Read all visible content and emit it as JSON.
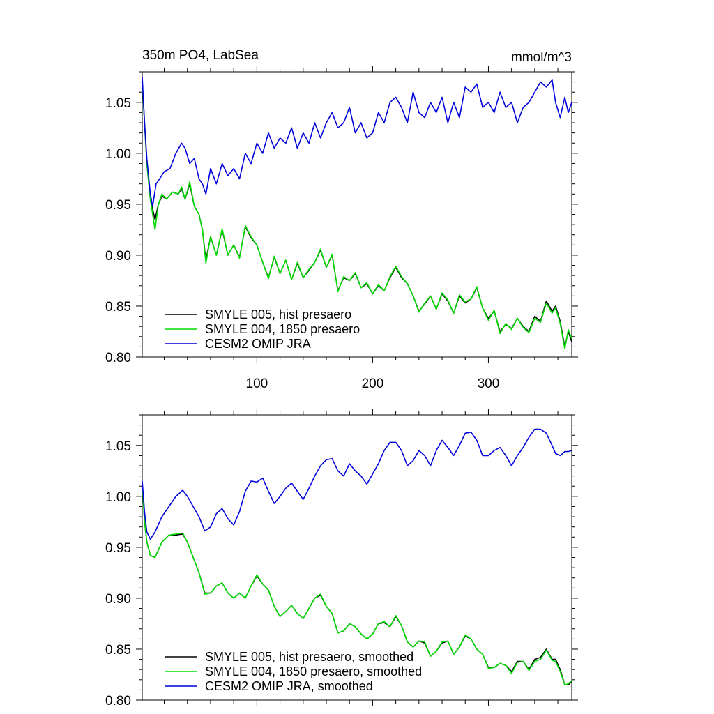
{
  "figure": {
    "title_left": "350m PO4, LabSea",
    "title_right": "mmol/m^3"
  },
  "colors": {
    "SMYLE 005": "#000000",
    "SMYLE 004": "#00dd00",
    "CESM2 OMIP JRA": "#0000dd"
  },
  "chart_data": [
    {
      "type": "line",
      "title": "350m PO4, LabSea",
      "units": "mmol/m^3",
      "xlim": [
        1,
        372
      ],
      "ylim": [
        0.8,
        1.08
      ],
      "yticks": [
        "0.80",
        "0.85",
        "0.90",
        "0.95",
        "1.00",
        "1.05"
      ],
      "xticks": [
        "100",
        "200",
        "300"
      ],
      "legend_position": "bottom-left",
      "grid": false,
      "series": [
        {
          "name": "SMYLE 005, hist presaero",
          "color": "#000000",
          "x": [
            1,
            3,
            5,
            8,
            12,
            15,
            18,
            22,
            27,
            32,
            35,
            38,
            42,
            46,
            50,
            53,
            56,
            60,
            65,
            70,
            75,
            80,
            85,
            90,
            95,
            100,
            105,
            110,
            115,
            120,
            125,
            130,
            135,
            140,
            145,
            150,
            155,
            160,
            165,
            170,
            175,
            180,
            185,
            190,
            195,
            200,
            205,
            210,
            215,
            220,
            225,
            230,
            235,
            240,
            245,
            250,
            255,
            260,
            265,
            270,
            275,
            280,
            285,
            290,
            295,
            300,
            305,
            310,
            315,
            320,
            325,
            330,
            335,
            340,
            345,
            350,
            355,
            358,
            362,
            366,
            369,
            372
          ],
          "y": [
            1.07,
            1.03,
            0.99,
            0.955,
            0.935,
            0.95,
            0.958,
            0.955,
            0.962,
            0.96,
            0.965,
            0.955,
            0.97,
            0.948,
            0.94,
            0.925,
            0.895,
            0.918,
            0.9,
            0.925,
            0.9,
            0.91,
            0.898,
            0.928,
            0.917,
            0.91,
            0.893,
            0.878,
            0.898,
            0.882,
            0.895,
            0.876,
            0.892,
            0.878,
            0.885,
            0.893,
            0.905,
            0.888,
            0.9,
            0.865,
            0.878,
            0.875,
            0.882,
            0.868,
            0.872,
            0.862,
            0.87,
            0.865,
            0.878,
            0.888,
            0.878,
            0.872,
            0.86,
            0.845,
            0.852,
            0.86,
            0.847,
            0.862,
            0.855,
            0.843,
            0.86,
            0.853,
            0.857,
            0.868,
            0.848,
            0.838,
            0.845,
            0.825,
            0.832,
            0.828,
            0.838,
            0.83,
            0.825,
            0.84,
            0.835,
            0.855,
            0.845,
            0.85,
            0.835,
            0.81,
            0.825,
            0.815
          ]
        },
        {
          "name": "SMYLE 004, 1850 presaero",
          "color": "#00dd00",
          "x": [
            1,
            3,
            5,
            8,
            12,
            15,
            18,
            22,
            27,
            32,
            35,
            38,
            42,
            46,
            50,
            53,
            56,
            60,
            65,
            70,
            75,
            80,
            85,
            90,
            95,
            100,
            105,
            110,
            115,
            120,
            125,
            130,
            135,
            140,
            145,
            150,
            155,
            160,
            165,
            170,
            175,
            180,
            185,
            190,
            195,
            200,
            205,
            210,
            215,
            220,
            225,
            230,
            235,
            240,
            245,
            250,
            255,
            260,
            265,
            270,
            275,
            280,
            285,
            290,
            295,
            300,
            305,
            310,
            315,
            320,
            325,
            330,
            335,
            340,
            345,
            350,
            355,
            358,
            362,
            366,
            369,
            372
          ],
          "y": [
            1.07,
            1.03,
            0.99,
            0.955,
            0.925,
            0.95,
            0.96,
            0.955,
            0.962,
            0.96,
            0.967,
            0.955,
            0.972,
            0.948,
            0.94,
            0.925,
            0.892,
            0.918,
            0.9,
            0.926,
            0.9,
            0.91,
            0.897,
            0.929,
            0.918,
            0.91,
            0.893,
            0.877,
            0.899,
            0.882,
            0.895,
            0.876,
            0.893,
            0.878,
            0.886,
            0.893,
            0.906,
            0.888,
            0.901,
            0.864,
            0.879,
            0.875,
            0.883,
            0.868,
            0.873,
            0.862,
            0.871,
            0.865,
            0.879,
            0.889,
            0.879,
            0.872,
            0.86,
            0.844,
            0.853,
            0.86,
            0.847,
            0.863,
            0.856,
            0.843,
            0.861,
            0.854,
            0.857,
            0.869,
            0.848,
            0.836,
            0.846,
            0.823,
            0.833,
            0.827,
            0.838,
            0.829,
            0.824,
            0.838,
            0.834,
            0.853,
            0.843,
            0.848,
            0.833,
            0.808,
            0.827,
            0.818
          ]
        },
        {
          "name": "CESM2 OMIP JRA",
          "color": "#0000dd",
          "x": [
            1,
            3,
            5,
            8,
            10,
            13,
            16,
            20,
            25,
            30,
            35,
            38,
            42,
            46,
            50,
            53,
            56,
            60,
            65,
            70,
            75,
            80,
            85,
            90,
            95,
            100,
            105,
            110,
            115,
            120,
            125,
            130,
            135,
            140,
            145,
            150,
            155,
            160,
            165,
            170,
            175,
            180,
            185,
            190,
            195,
            200,
            205,
            210,
            215,
            220,
            225,
            230,
            235,
            240,
            245,
            250,
            255,
            260,
            265,
            270,
            275,
            280,
            285,
            290,
            295,
            300,
            305,
            310,
            315,
            320,
            325,
            330,
            335,
            340,
            345,
            350,
            355,
            358,
            362,
            366,
            369,
            372
          ],
          "y": [
            1.075,
            1.03,
            0.995,
            0.96,
            0.948,
            0.97,
            0.975,
            0.982,
            0.985,
            1.0,
            1.01,
            1.005,
            0.99,
            0.995,
            0.975,
            0.97,
            0.96,
            0.985,
            0.97,
            0.99,
            0.978,
            0.985,
            0.975,
            1.0,
            0.99,
            1.01,
            1.0,
            1.02,
            1.005,
            1.015,
            1.01,
            1.025,
            1.005,
            1.02,
            1.01,
            1.03,
            1.015,
            1.03,
            1.04,
            1.025,
            1.03,
            1.045,
            1.02,
            1.03,
            1.015,
            1.02,
            1.04,
            1.03,
            1.05,
            1.055,
            1.045,
            1.03,
            1.06,
            1.04,
            1.035,
            1.05,
            1.04,
            1.055,
            1.03,
            1.05,
            1.035,
            1.065,
            1.06,
            1.068,
            1.045,
            1.05,
            1.04,
            1.06,
            1.045,
            1.05,
            1.03,
            1.045,
            1.05,
            1.06,
            1.07,
            1.065,
            1.072,
            1.05,
            1.035,
            1.055,
            1.04,
            1.05
          ]
        }
      ]
    },
    {
      "type": "line",
      "xlim": [
        1,
        372
      ],
      "ylim": [
        0.8,
        1.08
      ],
      "yticks": [
        "0.80",
        "0.85",
        "0.90",
        "0.95",
        "1.00",
        "1.05"
      ],
      "legend_position": "bottom-left",
      "grid": false,
      "series": [
        {
          "name": "SMYLE 005, hist presaero, smoothed",
          "color": "#000000",
          "x": [
            1,
            3,
            5,
            8,
            12,
            18,
            24,
            30,
            36,
            40,
            45,
            50,
            55,
            60,
            65,
            70,
            75,
            80,
            85,
            90,
            95,
            100,
            105,
            110,
            115,
            120,
            125,
            130,
            135,
            140,
            145,
            150,
            155,
            160,
            165,
            170,
            175,
            180,
            185,
            190,
            195,
            200,
            205,
            210,
            215,
            220,
            225,
            230,
            235,
            240,
            245,
            250,
            255,
            260,
            265,
            270,
            275,
            280,
            285,
            290,
            295,
            300,
            305,
            310,
            315,
            320,
            325,
            330,
            335,
            340,
            345,
            350,
            355,
            358,
            362,
            366,
            369,
            372
          ],
          "y": [
            1.013,
            0.975,
            0.955,
            0.942,
            0.94,
            0.955,
            0.962,
            0.962,
            0.963,
            0.955,
            0.94,
            0.925,
            0.905,
            0.905,
            0.912,
            0.915,
            0.905,
            0.9,
            0.905,
            0.9,
            0.912,
            0.922,
            0.914,
            0.908,
            0.892,
            0.882,
            0.887,
            0.893,
            0.885,
            0.88,
            0.89,
            0.9,
            0.903,
            0.892,
            0.885,
            0.866,
            0.868,
            0.875,
            0.872,
            0.865,
            0.86,
            0.865,
            0.875,
            0.876,
            0.872,
            0.882,
            0.873,
            0.857,
            0.852,
            0.858,
            0.856,
            0.843,
            0.848,
            0.856,
            0.858,
            0.845,
            0.852,
            0.863,
            0.86,
            0.85,
            0.845,
            0.832,
            0.832,
            0.836,
            0.834,
            0.828,
            0.838,
            0.838,
            0.83,
            0.84,
            0.842,
            0.85,
            0.84,
            0.84,
            0.83,
            0.815,
            0.815,
            0.818
          ]
        },
        {
          "name": "SMYLE 004, 1850 presaero, smoothed",
          "color": "#00dd00",
          "x": [
            1,
            3,
            5,
            8,
            12,
            18,
            24,
            30,
            36,
            40,
            45,
            50,
            55,
            60,
            65,
            70,
            75,
            80,
            85,
            90,
            95,
            100,
            105,
            110,
            115,
            120,
            125,
            130,
            135,
            140,
            145,
            150,
            155,
            160,
            165,
            170,
            175,
            180,
            185,
            190,
            195,
            200,
            205,
            210,
            215,
            220,
            225,
            230,
            235,
            240,
            245,
            250,
            255,
            260,
            265,
            270,
            275,
            280,
            285,
            290,
            295,
            300,
            305,
            310,
            315,
            320,
            325,
            330,
            335,
            340,
            345,
            350,
            355,
            358,
            362,
            366,
            369,
            372
          ],
          "y": [
            1.013,
            0.975,
            0.955,
            0.942,
            0.94,
            0.955,
            0.962,
            0.963,
            0.964,
            0.955,
            0.94,
            0.925,
            0.904,
            0.905,
            0.912,
            0.915,
            0.905,
            0.9,
            0.905,
            0.9,
            0.912,
            0.923,
            0.914,
            0.908,
            0.892,
            0.882,
            0.887,
            0.893,
            0.885,
            0.88,
            0.89,
            0.9,
            0.904,
            0.892,
            0.885,
            0.866,
            0.868,
            0.875,
            0.872,
            0.865,
            0.86,
            0.865,
            0.875,
            0.877,
            0.872,
            0.883,
            0.873,
            0.857,
            0.852,
            0.858,
            0.857,
            0.843,
            0.848,
            0.857,
            0.858,
            0.845,
            0.852,
            0.864,
            0.86,
            0.85,
            0.845,
            0.831,
            0.832,
            0.836,
            0.834,
            0.826,
            0.837,
            0.838,
            0.829,
            0.838,
            0.84,
            0.849,
            0.839,
            0.838,
            0.828,
            0.815,
            0.816,
            0.819
          ]
        },
        {
          "name": "CESM2 OMIP JRA, smoothed",
          "color": "#0000dd",
          "x": [
            1,
            3,
            5,
            8,
            12,
            18,
            24,
            30,
            36,
            40,
            45,
            50,
            55,
            60,
            65,
            70,
            75,
            80,
            85,
            90,
            95,
            100,
            105,
            110,
            115,
            120,
            125,
            130,
            135,
            140,
            145,
            150,
            155,
            160,
            165,
            170,
            175,
            180,
            185,
            190,
            195,
            200,
            205,
            210,
            215,
            220,
            225,
            230,
            235,
            240,
            245,
            250,
            255,
            260,
            265,
            270,
            275,
            280,
            285,
            290,
            295,
            300,
            305,
            310,
            315,
            320,
            325,
            330,
            335,
            340,
            345,
            350,
            355,
            358,
            362,
            366,
            369,
            372
          ],
          "y": [
            1.015,
            0.985,
            0.965,
            0.958,
            0.965,
            0.98,
            0.99,
            1.0,
            1.006,
            1.0,
            0.99,
            0.98,
            0.966,
            0.97,
            0.983,
            0.988,
            0.978,
            0.972,
            0.985,
            1.005,
            1.015,
            1.014,
            1.018,
            1.005,
            0.993,
            1.0,
            1.008,
            1.013,
            1.005,
            0.997,
            1.008,
            1.02,
            1.03,
            1.036,
            1.037,
            1.025,
            1.02,
            1.032,
            1.025,
            1.02,
            1.012,
            1.022,
            1.032,
            1.045,
            1.053,
            1.053,
            1.045,
            1.03,
            1.035,
            1.045,
            1.04,
            1.03,
            1.045,
            1.055,
            1.048,
            1.04,
            1.05,
            1.062,
            1.063,
            1.055,
            1.04,
            1.04,
            1.045,
            1.048,
            1.04,
            1.03,
            1.04,
            1.048,
            1.058,
            1.066,
            1.066,
            1.062,
            1.05,
            1.042,
            1.04,
            1.044,
            1.044,
            1.045
          ]
        }
      ]
    }
  ]
}
